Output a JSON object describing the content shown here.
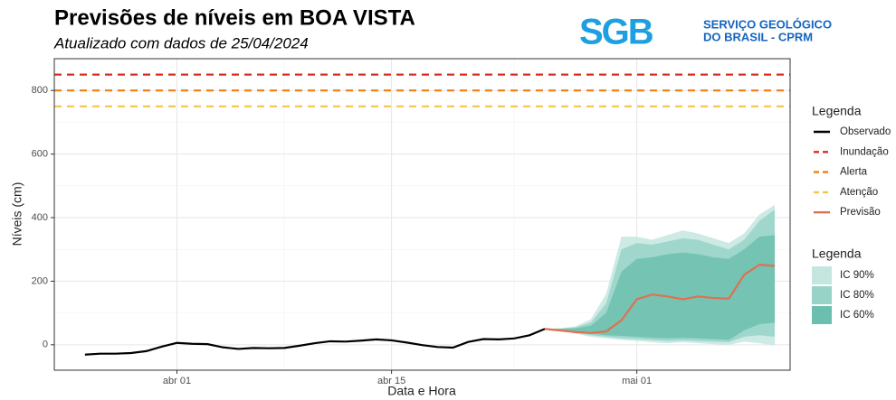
{
  "logo": {
    "mark": "SGB",
    "line1": "SERVIÇO GEOLÓGICO",
    "line2": "DO BRASIL - CPRM"
  },
  "chart_data": {
    "type": "line",
    "title": "Previsões de níveis em BOA VISTA",
    "subtitle": "Atualizado com dados de 25/04/2024",
    "x_label": "Data e Hora",
    "y_label": "Níveis (cm)",
    "xlim": [
      "03-24",
      "05-11"
    ],
    "xticks": [
      {
        "value": "04-01",
        "label": "abr 01"
      },
      {
        "value": "04-15",
        "label": "abr 15"
      },
      {
        "value": "05-01",
        "label": "mai 01"
      }
    ],
    "ylim": [
      -80,
      900
    ],
    "yticks": [
      0,
      200,
      400,
      600,
      800
    ],
    "grid": true,
    "legend_title": "Legenda",
    "band_legend_title": "Legenda",
    "series": [
      {
        "name": "Observado",
        "color": "#000000",
        "x": [
          "03-26",
          "03-27",
          "03-28",
          "03-29",
          "03-30",
          "03-31",
          "04-01",
          "04-02",
          "04-03",
          "04-04",
          "04-05",
          "04-06",
          "04-07",
          "04-08",
          "04-09",
          "04-10",
          "04-11",
          "04-12",
          "04-13",
          "04-14",
          "04-15",
          "04-16",
          "04-17",
          "04-18",
          "04-19",
          "04-20",
          "04-21",
          "04-22",
          "04-23",
          "04-24",
          "04-25"
        ],
        "values": [
          -31,
          -28,
          -28,
          -26,
          -20,
          -6,
          6,
          3,
          2,
          -8,
          -13,
          -10,
          -11,
          -10,
          -3,
          5,
          11,
          10,
          13,
          17,
          14,
          7,
          -1,
          -7,
          -9,
          9,
          18,
          17,
          20,
          30,
          50
        ]
      },
      {
        "name": "Inundação",
        "color": "#d7301f",
        "value": 850
      },
      {
        "name": "Alerta",
        "color": "#f07f0c",
        "value": 800
      },
      {
        "name": "Atenção",
        "color": "#f5c54a",
        "value": 750
      },
      {
        "name": "Previsão",
        "color": "#e07050",
        "x": [
          "04-25",
          "04-26",
          "04-27",
          "04-28",
          "04-29",
          "04-30",
          "05-01",
          "05-02",
          "05-03",
          "05-04",
          "05-05",
          "05-06",
          "05-07",
          "05-08",
          "05-09",
          "05-10"
        ],
        "values": [
          50,
          45,
          40,
          37,
          42,
          77,
          143,
          158,
          152,
          143,
          152,
          147,
          145,
          220,
          252,
          248
        ]
      }
    ],
    "bands": [
      {
        "name": "IC 90%",
        "color": "#c4e6df",
        "x": [
          "04-25",
          "04-26",
          "04-27",
          "04-28",
          "04-29",
          "04-30",
          "05-01",
          "05-02",
          "05-03",
          "05-04",
          "05-05",
          "05-06",
          "05-07",
          "05-08",
          "05-09",
          "05-10"
        ],
        "upper": [
          50,
          52,
          58,
          80,
          160,
          340,
          340,
          330,
          345,
          360,
          350,
          335,
          320,
          350,
          410,
          440
        ],
        "lower": [
          50,
          45,
          35,
          25,
          20,
          15,
          12,
          8,
          5,
          8,
          5,
          2,
          0,
          10,
          5,
          -2
        ]
      },
      {
        "name": "IC 80%",
        "color": "#98d3c8",
        "x": [
          "04-25",
          "04-26",
          "04-27",
          "04-28",
          "04-29",
          "04-30",
          "05-01",
          "05-02",
          "05-03",
          "05-04",
          "05-05",
          "05-06",
          "05-07",
          "05-08",
          "05-09",
          "05-10"
        ],
        "upper": [
          50,
          51,
          55,
          70,
          130,
          300,
          320,
          315,
          325,
          335,
          330,
          315,
          300,
          330,
          390,
          425
        ],
        "lower": [
          50,
          46,
          38,
          30,
          25,
          20,
          18,
          15,
          12,
          14,
          12,
          10,
          8,
          25,
          30,
          25
        ]
      },
      {
        "name": "IC 60%",
        "color": "#6cbfae",
        "x": [
          "04-25",
          "04-26",
          "04-27",
          "04-28",
          "04-29",
          "04-30",
          "05-01",
          "05-02",
          "05-03",
          "05-04",
          "05-05",
          "05-06",
          "05-07",
          "05-08",
          "05-09",
          "05-10"
        ],
        "upper": [
          50,
          50,
          52,
          60,
          100,
          230,
          270,
          275,
          285,
          290,
          285,
          275,
          270,
          300,
          340,
          345
        ],
        "lower": [
          50,
          48,
          42,
          35,
          30,
          28,
          25,
          22,
          20,
          22,
          20,
          18,
          15,
          45,
          65,
          70
        ]
      }
    ]
  }
}
